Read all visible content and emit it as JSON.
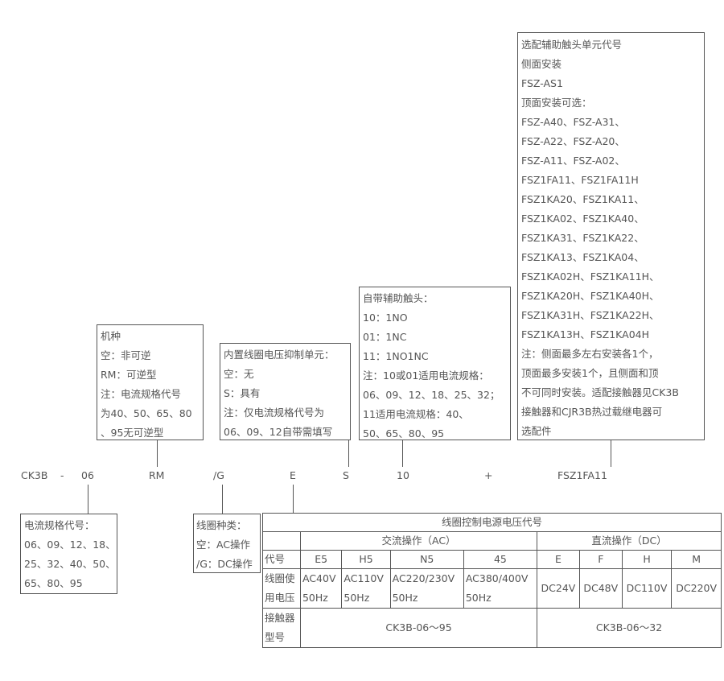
{
  "code_row": [
    "CK3B",
    "-",
    "06",
    "RM",
    "/G",
    "E",
    "S",
    "10",
    "+",
    "FSZ1FA11"
  ],
  "box_type": [
    "机种",
    "空：非可逆",
    "RM：可逆型",
    "注：电流规格代号",
    "为40、50、65、80",
    "、95无可逆型"
  ],
  "box_suppress": [
    "内置线圈电压抑制单元：",
    "空：无",
    "S：具有",
    "注：仅电流规格代号为",
    "06、09、12自带需填写"
  ],
  "box_aux": [
    "自带辅助触头：",
    "10：1NO",
    "01：1NC",
    "11：1NO1NC",
    "注：10或01适用电流规格：",
    "06、09、12、18、25、32；",
    "11适用电流规格：40、",
    "50、65、80、95"
  ],
  "box_fsz": [
    "选配辅助触头单元代号",
    "侧面安装",
    "FSZ-AS1",
    "顶面安装可选：",
    "FSZ-A40、FSZ-A31、",
    "FSZ-A22、FSZ-A20、",
    "FSZ-A11、FSZ-A02、",
    "FSZ1FA11、FSZ1FA11H",
    "FSZ1KA20、FSZ1KA11、",
    "FSZ1KA02、FSZ1KA40、",
    "FSZ1KA31、FSZ1KA22、",
    "FSZ1KA13、FSZ1KA04、",
    "FSZ1KA02H、FSZ1KA11H、",
    "FSZ1KA20H、FSZ1KA40H、",
    "FSZ1KA31H、FSZ1KA22H、",
    "FSZ1KA13H、FSZ1KA04H",
    "注：侧面最多左右安装各1个，",
    "顶面最多安装1个，且侧面和顶",
    "不可同时安装。适配接触器见CK3B",
    "接触器和CJR3B热过载继电器可",
    "选配件"
  ],
  "box_current": [
    "电流规格代号：",
    "06、09、12、18、",
    "25、32、40、50、",
    "65、80、95"
  ],
  "box_coil": [
    "线圈种类：",
    "空：AC操作",
    "/G：DC操作"
  ],
  "table": {
    "title": "线圈控制电源电压代号",
    "ac": "交流操作（AC）",
    "dc": "直流操作（DC）",
    "code_label": "代号",
    "codes": [
      "E5",
      "H5",
      "N5",
      "45",
      "E",
      "F",
      "H",
      "M"
    ],
    "voltage_label": [
      "线圈使",
      "用电压"
    ],
    "ac_voltages": [
      [
        "AC40V",
        "50Hz"
      ],
      [
        "AC110V",
        "50Hz"
      ],
      [
        "AC220/230V",
        "50Hz"
      ],
      [
        "AC380/400V",
        "50Hz"
      ]
    ],
    "dc_voltages": [
      "DC24V",
      "DC48V",
      "DC110V",
      "DC220V"
    ],
    "model_label": [
      "接触器",
      "型号"
    ],
    "ac_model": "CK3B-06～95",
    "dc_model": "CK3B-06～32"
  }
}
